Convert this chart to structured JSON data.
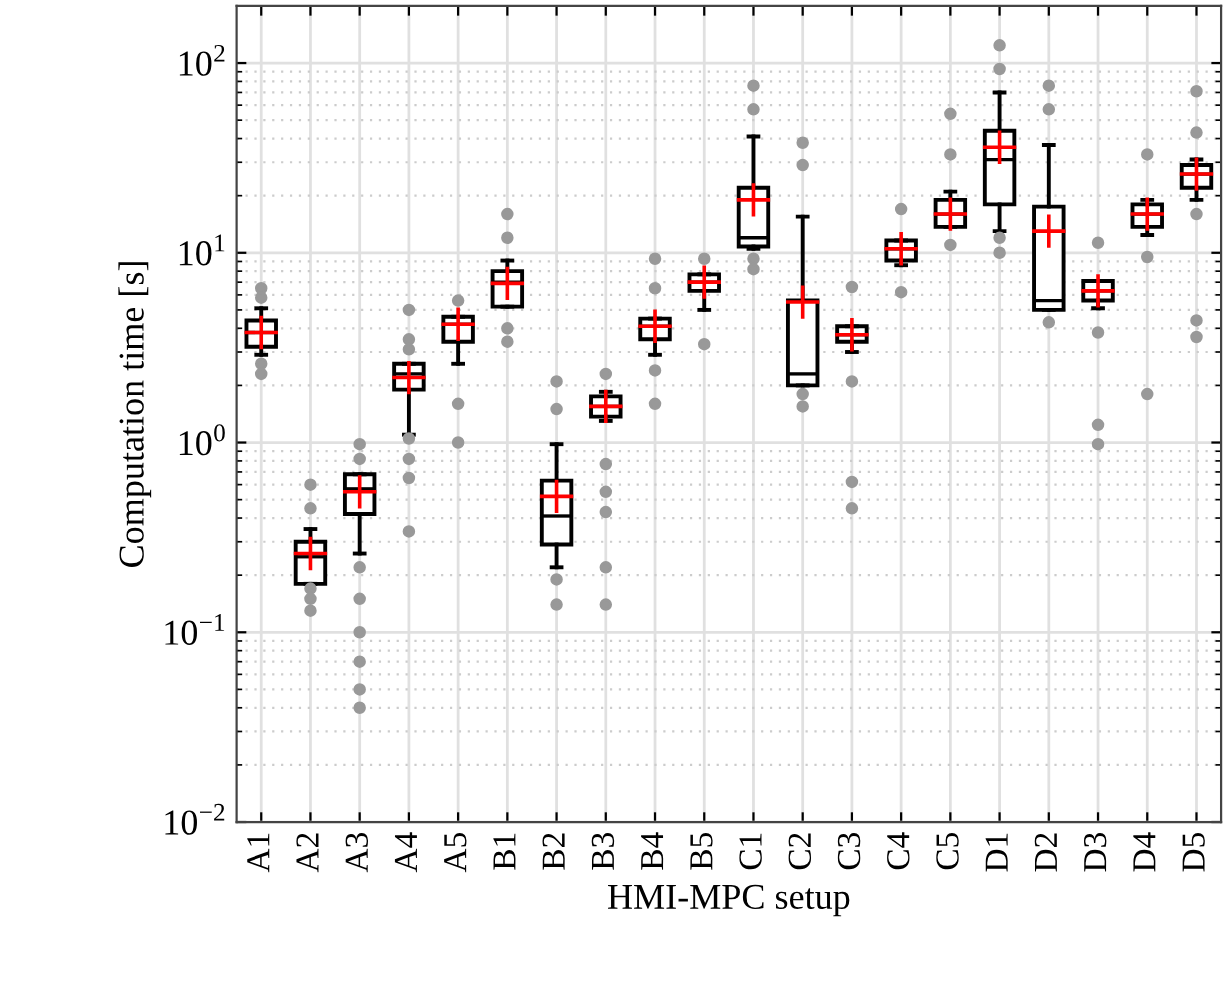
{
  "chart_data": {
    "type": "box",
    "xlabel": "HMI-MPC setup",
    "ylabel": "Computation time [s]",
    "categories": [
      "A1",
      "A2",
      "A3",
      "A4",
      "A5",
      "B1",
      "B2",
      "B3",
      "B4",
      "B5",
      "C1",
      "C2",
      "C3",
      "C4",
      "C5",
      "D1",
      "D2",
      "D3",
      "D4",
      "D5"
    ],
    "log": true,
    "grid": true,
    "ylim": [
      0.01,
      200
    ],
    "yticks": [
      {
        "value": 0.01,
        "label": "10$^{−2}$"
      },
      {
        "value": 0.1,
        "label": "10$^{−1}$"
      },
      {
        "value": 1,
        "label": "10$^{0}$"
      },
      {
        "value": 10,
        "label": "10$^{1}$"
      },
      {
        "value": 100,
        "label": "10$^{2}$"
      }
    ],
    "boxes": [
      {
        "low": 2.9,
        "q1": 3.2,
        "median": 3.8,
        "q3": 4.4,
        "high": 5.1,
        "mean": 3.8,
        "outliers": [
          6.5,
          5.8,
          2.6,
          2.3
        ]
      },
      {
        "low": 0.18,
        "q1": 0.18,
        "median": 0.25,
        "q3": 0.3,
        "high": 0.35,
        "mean": 0.26,
        "outliers": [
          0.6,
          0.45,
          0.17,
          0.15,
          0.13
        ]
      },
      {
        "low": 0.26,
        "q1": 0.42,
        "median": 0.57,
        "q3": 0.68,
        "high": 0.68,
        "mean": 0.55,
        "outliers": [
          0.98,
          0.82,
          0.22,
          0.15,
          0.1,
          0.07,
          0.05,
          0.04
        ]
      },
      {
        "low": 1.1,
        "q1": 1.9,
        "median": 2.3,
        "q3": 2.6,
        "high": 2.6,
        "mean": 2.2,
        "outliers": [
          5,
          3.5,
          3.1,
          1.05,
          0.82,
          0.65,
          0.34
        ]
      },
      {
        "low": 2.6,
        "q1": 3.4,
        "median": 4.2,
        "q3": 4.6,
        "high": 4.6,
        "mean": 4.2,
        "outliers": [
          5.6,
          1.6,
          1
        ]
      },
      {
        "low": 5.2,
        "q1": 5.2,
        "median": 7,
        "q3": 8,
        "high": 9.1,
        "mean": 6.9,
        "outliers": [
          16,
          12,
          4,
          3.4
        ]
      },
      {
        "low": 0.22,
        "q1": 0.29,
        "median": 0.41,
        "q3": 0.63,
        "high": 0.98,
        "mean": 0.52,
        "outliers": [
          2.1,
          1.5,
          0.19,
          0.14
        ]
      },
      {
        "low": 1.3,
        "q1": 1.37,
        "median": 1.55,
        "q3": 1.75,
        "high": 1.85,
        "mean": 1.55,
        "outliers": [
          2.3,
          0.77,
          0.55,
          0.43,
          0.22,
          0.14
        ]
      },
      {
        "low": 2.9,
        "q1": 3.5,
        "median": 4.1,
        "q3": 4.5,
        "high": 4.5,
        "mean": 4.1,
        "outliers": [
          9.3,
          6.5,
          2.4,
          1.6
        ]
      },
      {
        "low": 5,
        "q1": 6.3,
        "median": 7,
        "q3": 7.7,
        "high": 7.7,
        "mean": 7,
        "outliers": [
          9.3,
          3.3
        ]
      },
      {
        "low": 10.5,
        "q1": 10.8,
        "median": 12,
        "q3": 22,
        "high": 41,
        "mean": 19,
        "outliers": [
          76,
          57,
          9.3,
          8.2
        ]
      },
      {
        "low": 2,
        "q1": 2,
        "median": 2.3,
        "q3": 5.6,
        "high": 15.5,
        "mean": 5.5,
        "outliers": [
          38,
          29,
          1.8,
          1.55
        ]
      },
      {
        "low": 3,
        "q1": 3.4,
        "median": 3.7,
        "q3": 4.1,
        "high": 4.1,
        "mean": 3.7,
        "outliers": [
          6.6,
          2.1,
          0.62,
          0.45
        ]
      },
      {
        "low": 8.6,
        "q1": 9.1,
        "median": 10.5,
        "q3": 11.6,
        "high": 11.6,
        "mean": 10.5,
        "outliers": [
          17,
          6.2
        ]
      },
      {
        "low": 13.7,
        "q1": 13.7,
        "median": 16,
        "q3": 19,
        "high": 21,
        "mean": 16,
        "outliers": [
          54,
          33,
          11
        ]
      },
      {
        "low": 13,
        "q1": 18,
        "median": 31,
        "q3": 44,
        "high": 70,
        "mean": 36,
        "outliers": [
          124,
          93,
          12,
          10
        ]
      },
      {
        "low": 5,
        "q1": 5,
        "median": 5.6,
        "q3": 17.5,
        "high": 37,
        "mean": 13,
        "outliers": [
          76,
          57,
          4.3
        ]
      },
      {
        "low": 5.1,
        "q1": 5.6,
        "median": 6.3,
        "q3": 7.1,
        "high": 7.1,
        "mean": 6.3,
        "outliers": [
          11.3,
          3.8,
          1.24,
          0.98
        ]
      },
      {
        "low": 12.4,
        "q1": 13.7,
        "median": 16,
        "q3": 18,
        "high": 19,
        "mean": 16,
        "outliers": [
          33,
          9.5,
          1.8
        ]
      },
      {
        "low": 19,
        "q1": 22,
        "median": 26,
        "q3": 29,
        "high": 31,
        "mean": 26,
        "outliers": [
          71,
          43,
          16,
          4.4,
          3.6
        ]
      }
    ]
  }
}
